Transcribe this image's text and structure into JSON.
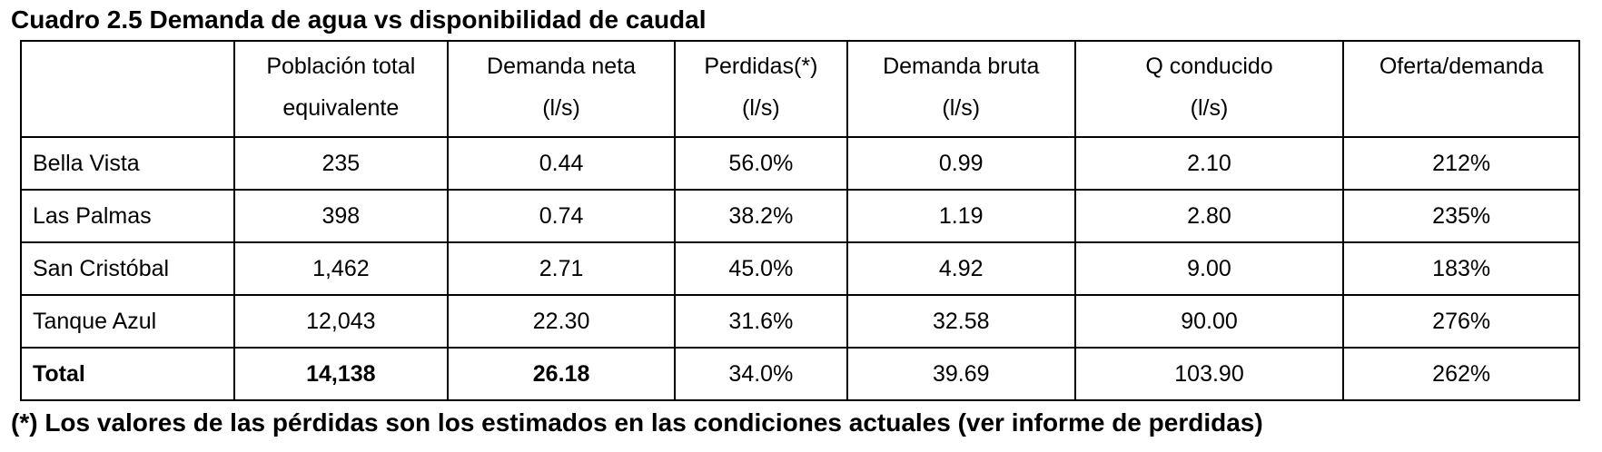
{
  "title": "Cuadro 2.5 Demanda de agua vs disponibilidad de caudal",
  "table": {
    "headers": [
      {
        "line1": "",
        "line2": ""
      },
      {
        "line1": "Población total",
        "line2": "equivalente"
      },
      {
        "line1": "Demanda neta",
        "line2": "(l/s)"
      },
      {
        "line1": "Perdidas(*)",
        "line2": "(l/s)"
      },
      {
        "line1": "Demanda bruta",
        "line2": "(l/s)"
      },
      {
        "line1": "Q conducido",
        "line2": "(l/s)"
      },
      {
        "line1": "Oferta/demanda",
        "line2": ""
      }
    ],
    "rows": [
      [
        "Bella Vista",
        "235",
        "0.44",
        "56.0%",
        "0.99",
        "2.10",
        "212%"
      ],
      [
        "Las Palmas",
        "398",
        "0.74",
        "38.2%",
        "1.19",
        "2.80",
        "235%"
      ],
      [
        "San Cristóbal",
        "1,462",
        "2.71",
        "45.0%",
        "4.92",
        "9.00",
        "183%"
      ],
      [
        "Tanque Azul",
        "12,043",
        "22.30",
        "31.6%",
        "32.58",
        "90.00",
        "276%"
      ],
      [
        "Total",
        "14,138",
        "26.18",
        "34.0%",
        "39.69",
        "103.90",
        "262%"
      ]
    ]
  },
  "footnote": "(*) Los valores de las pérdidas son los estimados en las condiciones actuales (ver informe de perdidas)"
}
